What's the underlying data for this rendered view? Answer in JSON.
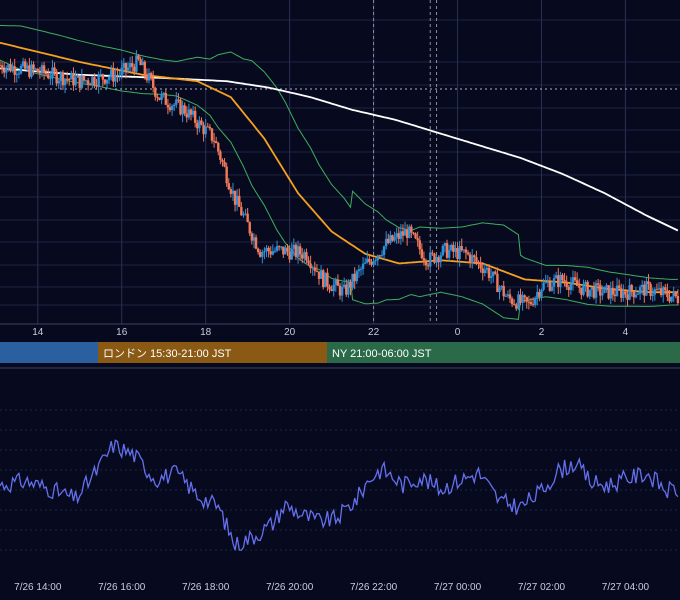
{
  "chart_data": [
    {
      "type": "candlestick",
      "panel": "price",
      "x_axis_tick_labels": [
        "14",
        "16",
        "18",
        "20",
        "22",
        "0",
        "2",
        "4"
      ],
      "x_axis_hours": [
        14,
        16,
        18,
        20,
        22,
        24,
        26,
        28
      ],
      "x_range_hours": [
        13.1,
        29.3
      ],
      "y_range": [
        0,
        100
      ],
      "grid": true,
      "indicators": [
        "bollinger-bands",
        "moving-average-orange",
        "moving-average-white"
      ],
      "colors": {
        "up": "#2f8fd8",
        "down": "#f07a5a",
        "bollinger": "#3fae5c",
        "ma_fast": "#f5a020",
        "ma_slow": "#ffffff",
        "grid": "#1c2340"
      },
      "close_anchors": {
        "hours": [
          13.1,
          14.0,
          15.0,
          15.9,
          16.4,
          16.9,
          17.5,
          18.2,
          18.7,
          19.3,
          19.8,
          20.4,
          20.8,
          21.3,
          21.7,
          22.3,
          22.8,
          23.3,
          23.7,
          24.2,
          24.7,
          25.2,
          25.7,
          26.0,
          26.5,
          27.0,
          27.5,
          28.0,
          28.5,
          29.3
        ],
        "values": [
          85,
          83,
          80,
          82,
          86,
          75,
          71,
          62,
          43,
          27,
          27,
          26,
          18,
          14,
          21,
          29,
          33,
          24,
          27,
          26,
          21,
          12,
          10,
          16,
          18,
          15,
          14,
          14,
          15,
          12
        ]
      },
      "ma_fast_anchors": {
        "hours": [
          13.1,
          15.0,
          16.5,
          17.8,
          18.6,
          19.4,
          20.2,
          21.0,
          21.8,
          22.6,
          23.6,
          24.6,
          25.6,
          26.6,
          27.6,
          28.6,
          29.3
        ],
        "values": [
          92,
          86,
          82,
          80,
          75,
          62,
          45,
          33,
          26,
          23,
          24,
          23,
          18,
          17,
          15,
          14,
          14
        ]
      },
      "ma_slow_anchors": {
        "hours": [
          13.1,
          15.0,
          17.0,
          18.5,
          19.5,
          20.5,
          21.5,
          22.5,
          23.5,
          24.5,
          25.5,
          26.5,
          27.5,
          28.5,
          29.3
        ],
        "values": [
          84,
          82,
          81,
          80,
          78,
          75,
          71,
          68,
          64,
          60,
          56,
          51,
          45,
          38,
          33
        ]
      }
    },
    {
      "type": "line",
      "panel": "oscillator",
      "x_axis_tick_labels": [
        "7/26 14:00",
        "7/26 16:00",
        "7/26 18:00",
        "7/26 20:00",
        "7/26 22:00",
        "7/27 00:00",
        "7/27 02:00",
        "7/27 04:00"
      ],
      "y_range": [
        0,
        100
      ],
      "color": "#6470ee",
      "anchors": {
        "hours": [
          13.1,
          13.7,
          14.3,
          14.9,
          15.4,
          15.8,
          16.3,
          16.8,
          17.3,
          17.8,
          18.3,
          18.7,
          19.2,
          19.6,
          19.9,
          20.3,
          20.7,
          21.1,
          21.6,
          21.9,
          22.2,
          22.7,
          23.1,
          23.6,
          24.0,
          24.5,
          25.0,
          25.5,
          26.0,
          26.4,
          26.8,
          27.2,
          27.6,
          28.0,
          28.5,
          29.0,
          29.3
        ],
        "values": [
          55,
          57,
          53,
          48,
          62,
          75,
          70,
          58,
          61,
          50,
          44,
          25,
          30,
          36,
          45,
          40,
          37,
          38,
          48,
          58,
          63,
          55,
          59,
          53,
          57,
          61,
          47,
          44,
          52,
          62,
          66,
          56,
          55,
          58,
          61,
          52,
          53
        ]
      }
    }
  ],
  "sessions": [
    {
      "label": "",
      "color": "#2a5fa0"
    },
    {
      "label": "ロンドン 15:30-21:00 JST",
      "color": "#8a5a14"
    },
    {
      "label": "NY 21:00-06:00 JST",
      "color": "#2a6a48"
    }
  ]
}
